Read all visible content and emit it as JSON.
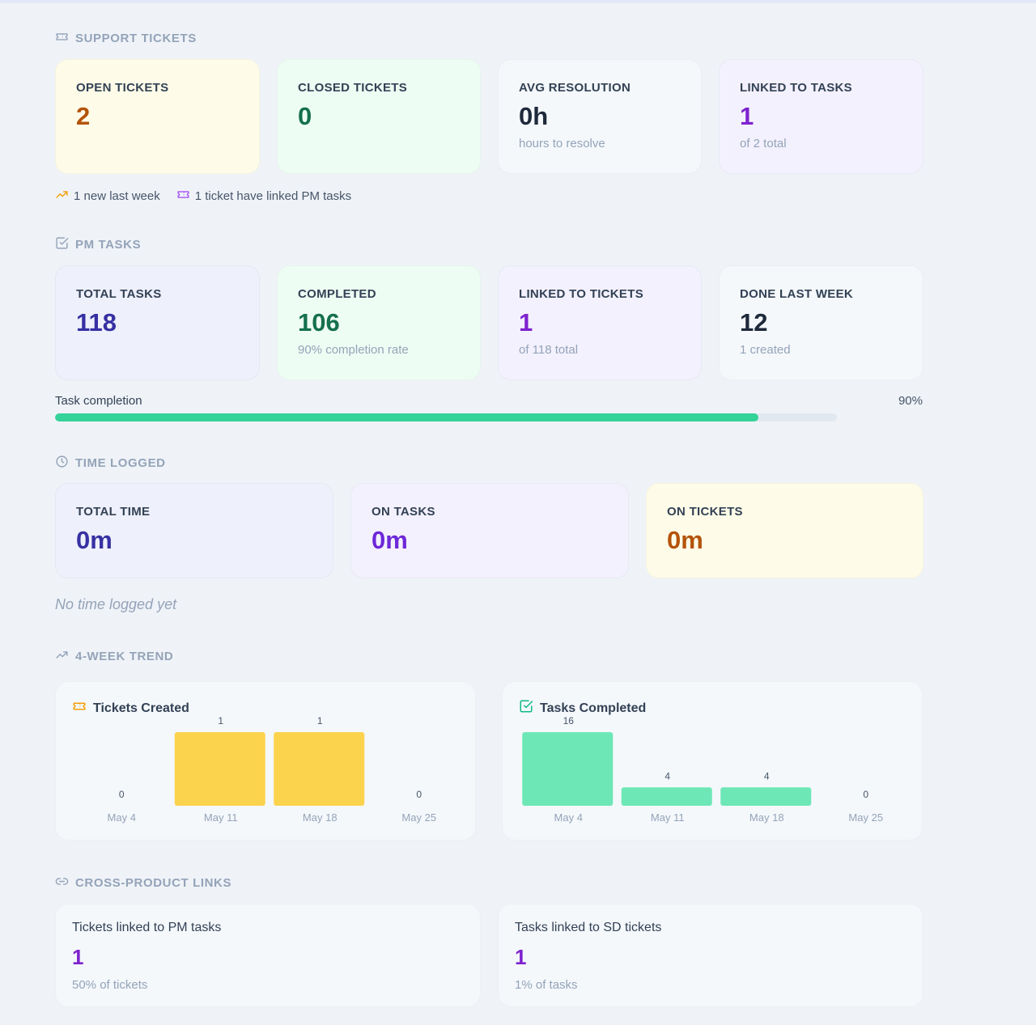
{
  "support": {
    "title": "SUPPORT TICKETS",
    "cards": [
      {
        "label": "OPEN TICKETS",
        "value": "2",
        "sub": ""
      },
      {
        "label": "CLOSED TICKETS",
        "value": "0",
        "sub": ""
      },
      {
        "label": "AVG RESOLUTION",
        "value": "0h",
        "sub": "hours to resolve"
      },
      {
        "label": "LINKED TO TASKS",
        "value": "1",
        "sub": "of 2 total"
      }
    ],
    "note_new": "1 new last week",
    "note_linked": "1 ticket have linked PM tasks"
  },
  "pm": {
    "title": "PM TASKS",
    "cards": [
      {
        "label": "TOTAL TASKS",
        "value": "118",
        "sub": ""
      },
      {
        "label": "COMPLETED",
        "value": "106",
        "sub": "90% completion rate"
      },
      {
        "label": "LINKED TO TICKETS",
        "value": "1",
        "sub": "of 118 total"
      },
      {
        "label": "DONE LAST WEEK",
        "value": "12",
        "sub": "1 created"
      }
    ],
    "progress_label": "Task completion",
    "progress_text": "90%",
    "progress_value": 0.9
  },
  "time": {
    "title": "TIME LOGGED",
    "cards": [
      {
        "label": "TOTAL TIME",
        "value": "0m"
      },
      {
        "label": "ON TASKS",
        "value": "0m"
      },
      {
        "label": "ON TICKETS",
        "value": "0m"
      }
    ],
    "empty": "No time logged yet"
  },
  "trend": {
    "title": "4-WEEK TREND"
  },
  "chart_data": [
    {
      "type": "bar",
      "title": "Tickets Created",
      "categories": [
        "May 4",
        "May 11",
        "May 18",
        "May 25"
      ],
      "values": [
        0,
        1,
        1,
        0
      ],
      "color": "#fcd34d"
    },
    {
      "type": "bar",
      "title": "Tasks Completed",
      "categories": [
        "May 4",
        "May 11",
        "May 18",
        "May 25"
      ],
      "values": [
        16,
        4,
        4,
        0
      ],
      "color": "#6ee7b7"
    }
  ],
  "links": {
    "title": "CROSS-PRODUCT LINKS",
    "cards": [
      {
        "label": "Tickets linked to PM tasks",
        "value": "1",
        "sub": "50% of tickets"
      },
      {
        "label": "Tasks linked to SD tickets",
        "value": "1",
        "sub": "1% of tasks"
      }
    ]
  },
  "colors": {
    "accent_green": "#34d399",
    "orange": "#b45309",
    "purple": "#7e22ce",
    "indigo": "#3730a3"
  }
}
